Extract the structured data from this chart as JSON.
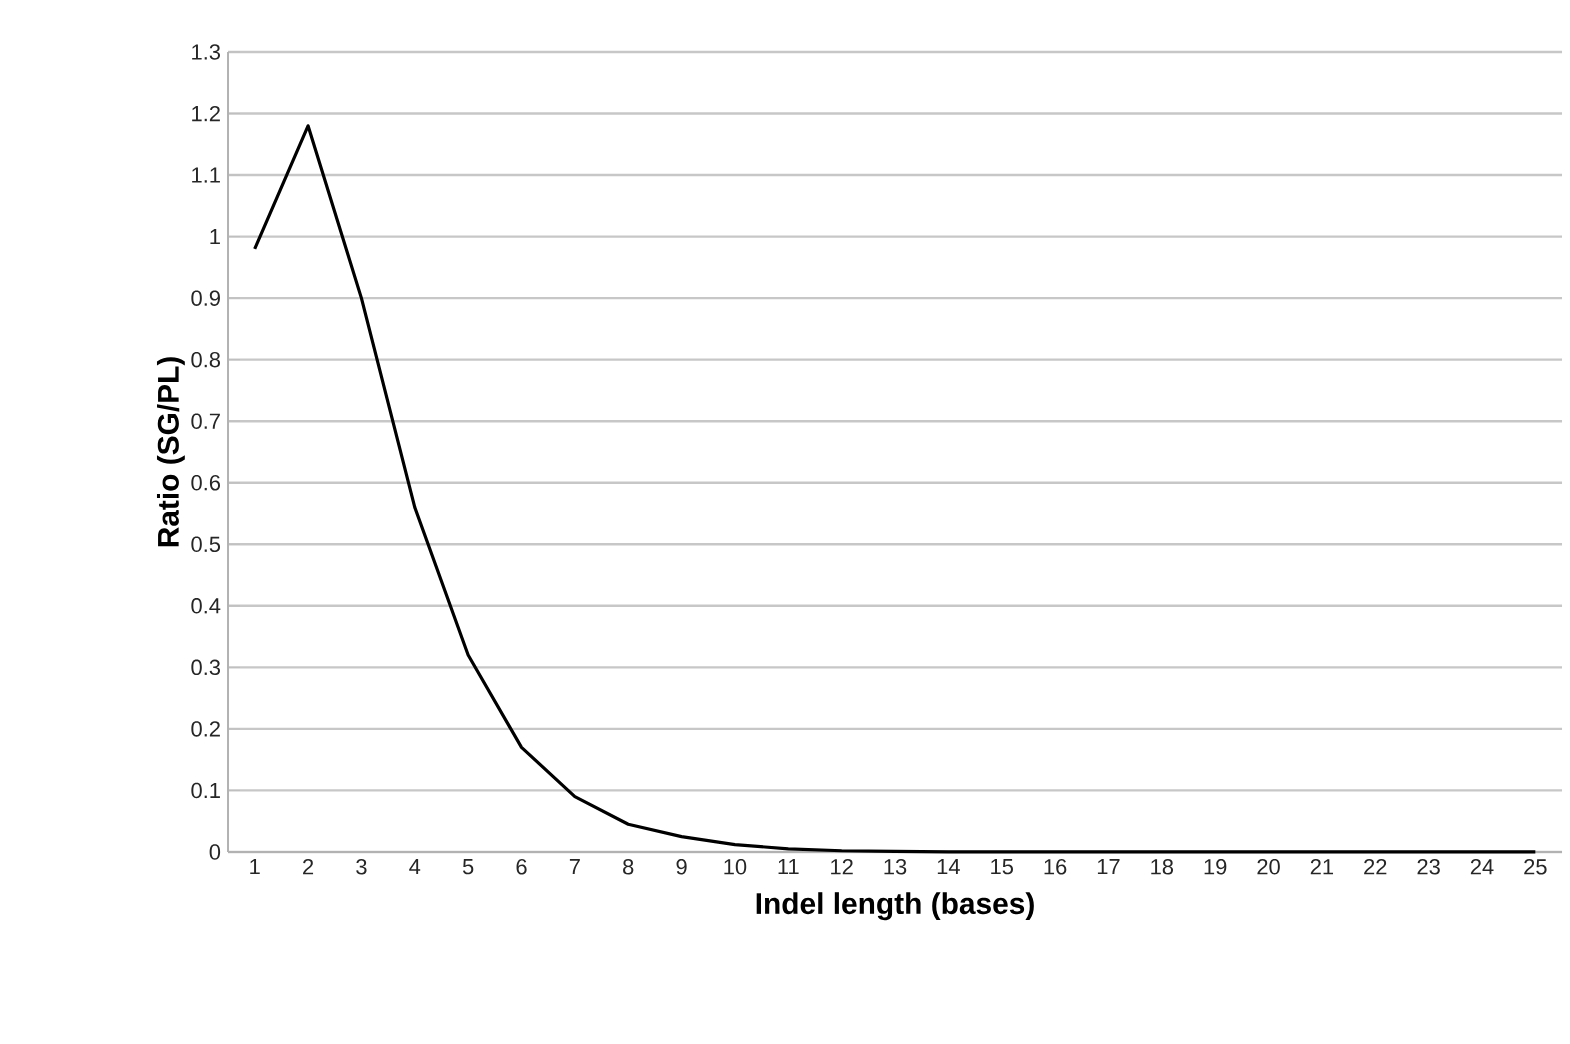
{
  "chart_data": {
    "type": "line",
    "xlabel": "Indel length (bases)",
    "ylabel": "Ratio (SG/PL)",
    "categories": [
      "1",
      "2",
      "3",
      "4",
      "5",
      "6",
      "7",
      "8",
      "9",
      "10",
      "11",
      "12",
      "13",
      "14",
      "15",
      "16",
      "17",
      "18",
      "19",
      "20",
      "21",
      "22",
      "23",
      "24",
      "25"
    ],
    "series": [
      {
        "color": "#000000",
        "values": [
          0.98,
          1.18,
          0.9,
          0.56,
          0.32,
          0.17,
          0.09,
          0.045,
          0.025,
          0.012,
          0.005,
          0.002,
          0.001,
          0,
          0,
          0,
          0,
          0,
          0,
          0,
          0,
          0,
          0,
          0,
          0
        ]
      }
    ],
    "ylim": [
      0,
      1.3
    ],
    "yticks": [
      0,
      0.1,
      0.2,
      0.3,
      0.4,
      0.5,
      0.6,
      0.7,
      0.8,
      0.9,
      1,
      1.1,
      1.2,
      1.3
    ],
    "grid": "y",
    "marker": "none",
    "line_style": "solid"
  }
}
